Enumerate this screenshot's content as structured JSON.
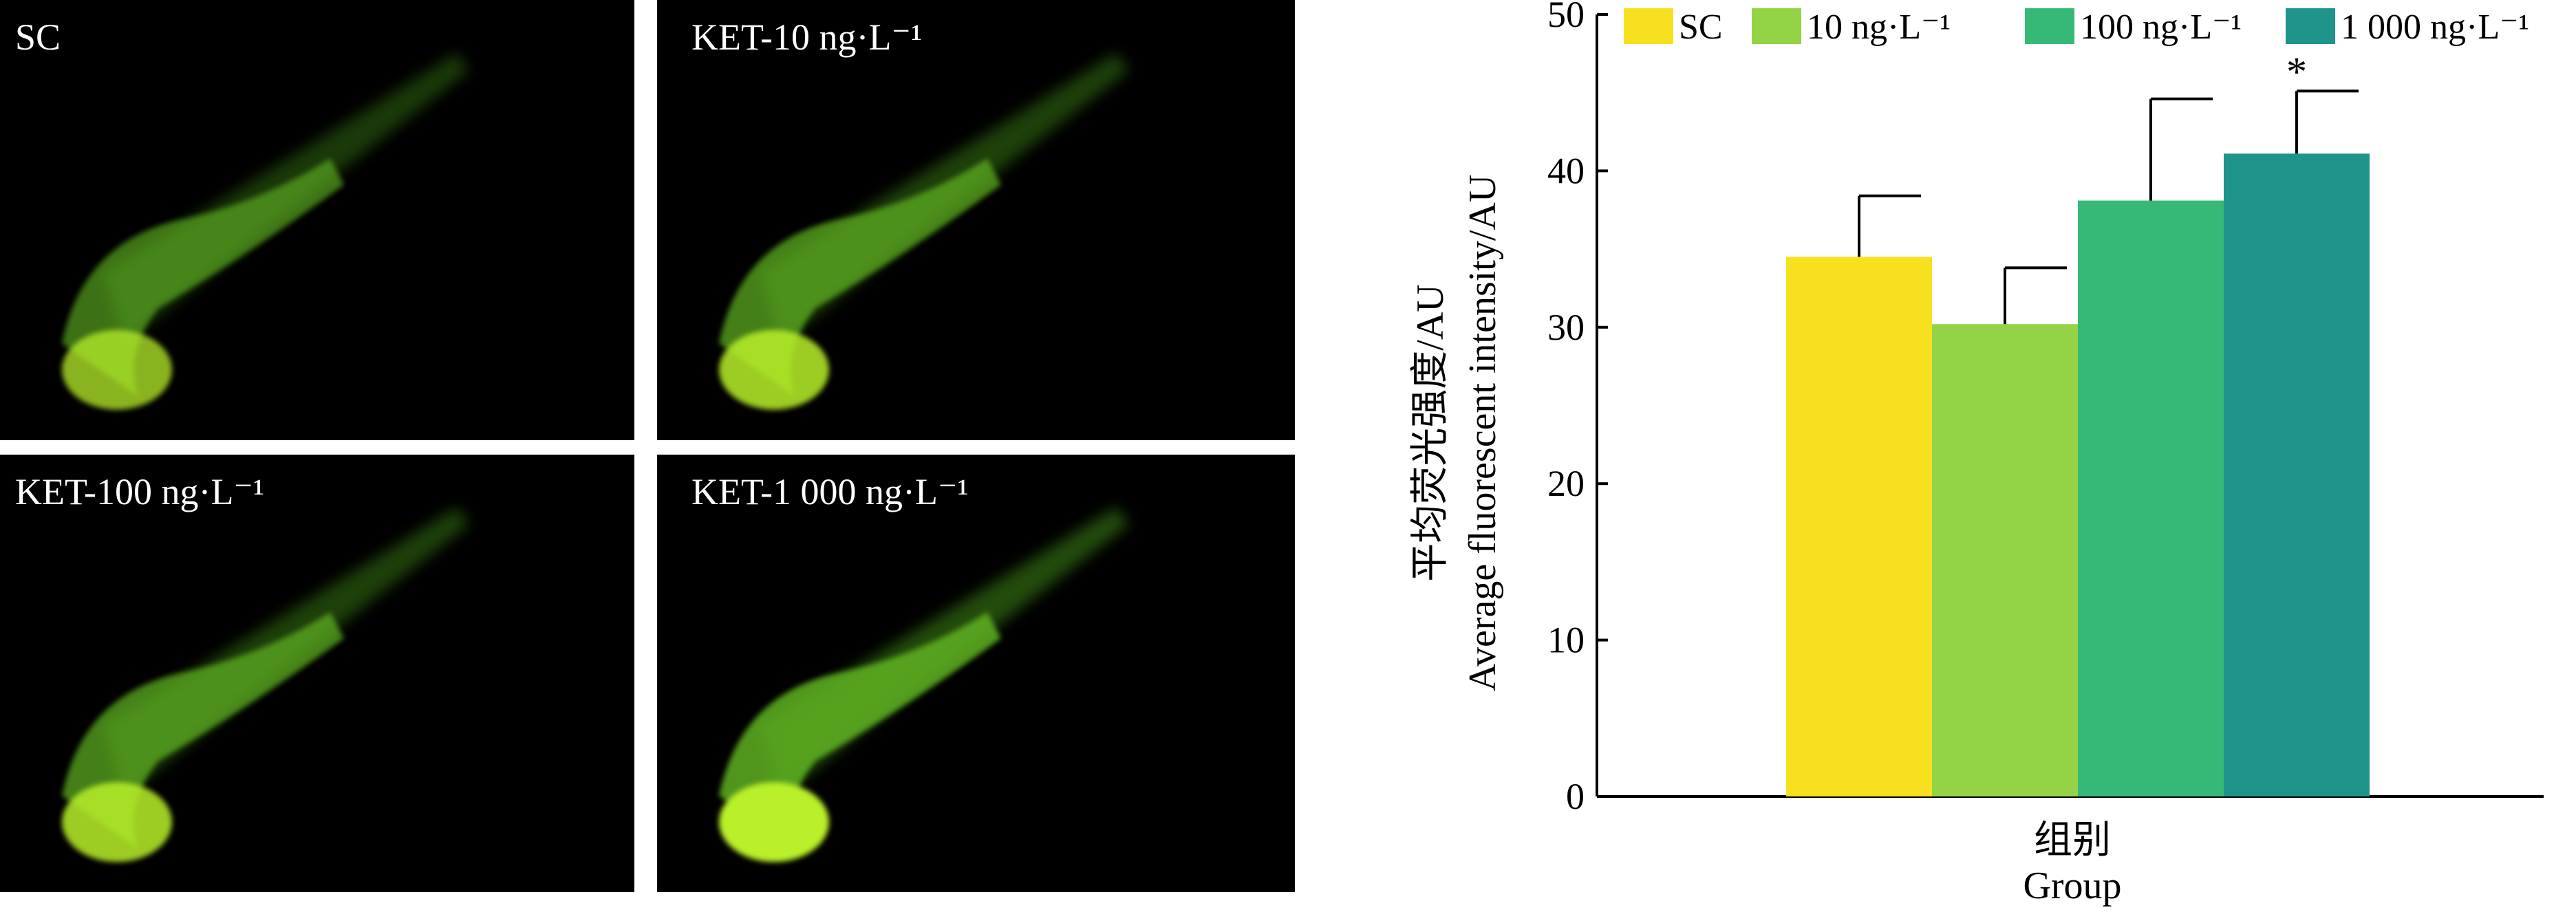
{
  "panels": [
    {
      "label": "SC"
    },
    {
      "label": "KET-10 ng·L⁻¹"
    },
    {
      "label": "KET-100 ng·L⁻¹"
    },
    {
      "label": "KET-1 000 ng·L⁻¹"
    }
  ],
  "chart_data": {
    "type": "bar",
    "y_label": [
      "平均荧光强度/AU",
      "Average fluorescent intensity/AU"
    ],
    "x_label": [
      "组别",
      "Group"
    ],
    "ylim": [
      0,
      50
    ],
    "yticks": [
      0,
      10,
      20,
      30,
      40,
      50
    ],
    "legend": "top",
    "series": [
      {
        "name": "SC",
        "color": "#f7e11e",
        "values": [
          34.5
        ],
        "errors": [
          3.9
        ]
      },
      {
        "name": "10 ng·L⁻¹",
        "color": "#93d345",
        "values": [
          30.2
        ],
        "errors": [
          3.6
        ]
      },
      {
        "name": "100 ng·L⁻¹",
        "color": "#36b977",
        "values": [
          38.1
        ],
        "errors": [
          6.5
        ]
      },
      {
        "name": "1 000 ng·L⁻¹",
        "color": "#1f948a",
        "values": [
          41.1
        ],
        "errors": [
          4.0
        ],
        "annotation": "*"
      }
    ]
  }
}
